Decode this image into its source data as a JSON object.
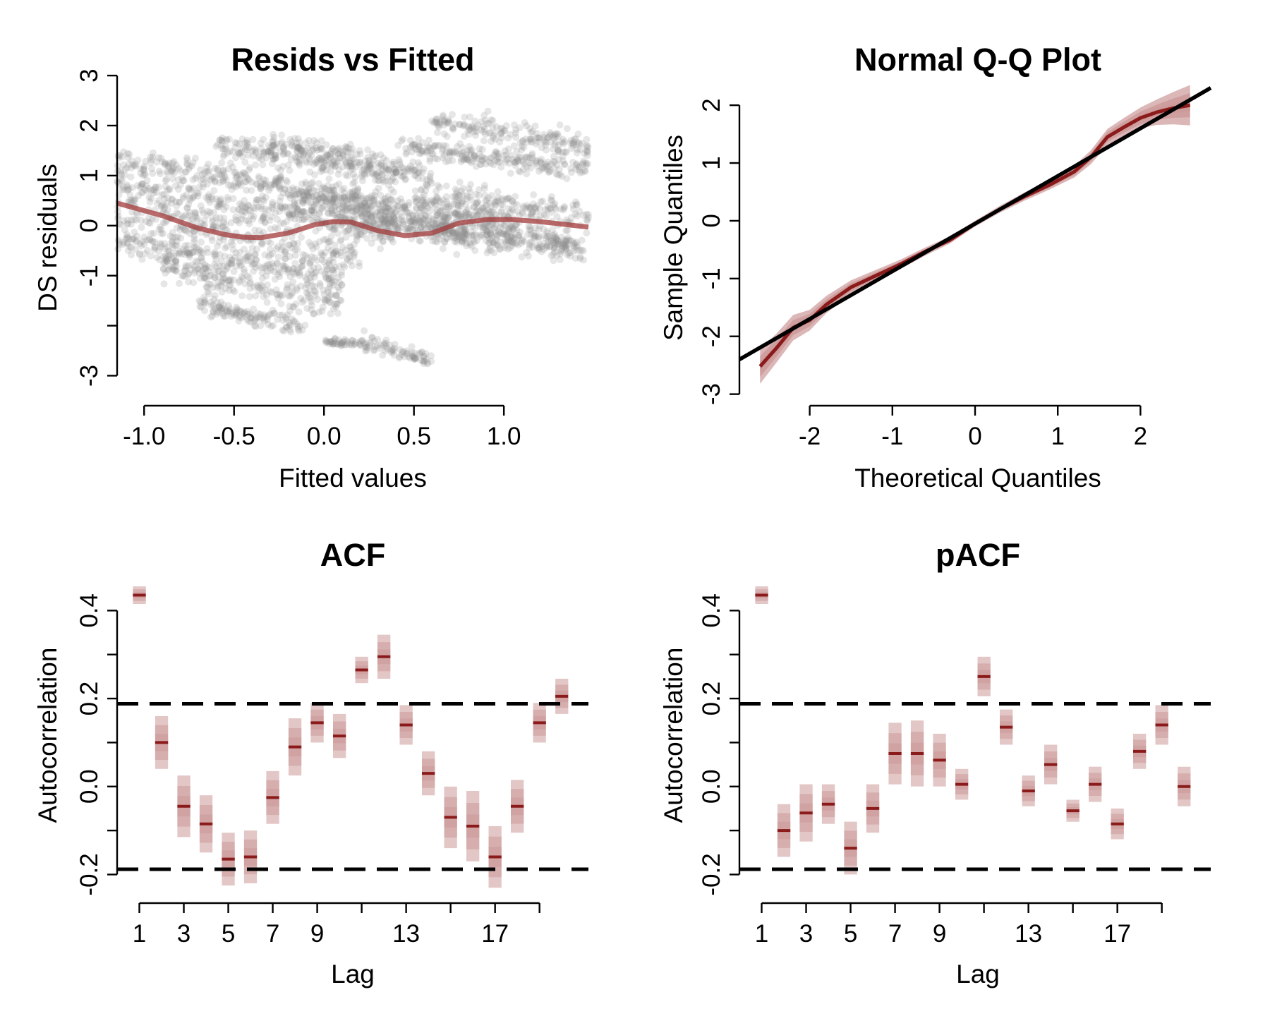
{
  "colors": {
    "band": "#8b1a1a",
    "band_light": "#cc9999",
    "points": "#8c8c8c",
    "smooth": "#a33a3a",
    "refline": "#000000"
  },
  "chart_data": [
    {
      "id": "resid",
      "type": "scatter",
      "title": "Resids vs Fitted",
      "xlabel": "Fitted values",
      "ylabel": "DS residuals",
      "xlim": [
        -1.15,
        1.47
      ],
      "ylim": [
        -3.6,
        3.1
      ],
      "xticks": [
        -1.0,
        -0.5,
        0.0,
        0.5,
        1.0
      ],
      "xtick_labels": [
        "-1.0",
        "-0.5",
        "0.0",
        "0.5",
        "1.0"
      ],
      "yticks": [
        -3,
        -2,
        -1,
        0,
        1,
        2,
        3
      ],
      "ytick_labels": [
        "-3",
        "",
        "-1",
        "0",
        "1",
        "2",
        "3"
      ],
      "point_bands": [
        {
          "x0": -1.15,
          "x1": 0.2,
          "y0": 1.3,
          "slope": -0.55,
          "spread": 0.25
        },
        {
          "x0": -1.15,
          "x1": 0.4,
          "y0": 0.8,
          "slope": -0.6,
          "spread": 0.3
        },
        {
          "x0": -1.15,
          "x1": 0.2,
          "y0": 0.3,
          "slope": -0.65,
          "spread": 0.35
        },
        {
          "x0": -1.15,
          "x1": 0.1,
          "y0": -0.3,
          "slope": -0.6,
          "spread": 0.3
        },
        {
          "x0": -0.9,
          "x1": 0.1,
          "y0": -0.8,
          "slope": -0.75,
          "spread": 0.3
        },
        {
          "x0": -0.7,
          "x1": -0.1,
          "y0": -1.6,
          "slope": -0.7,
          "spread": 0.2
        },
        {
          "x0": -0.6,
          "x1": 0.4,
          "y0": 1.6,
          "slope": -0.6,
          "spread": 0.25
        },
        {
          "x0": -0.3,
          "x1": 0.6,
          "y0": 1.7,
          "slope": -0.8,
          "spread": 0.25
        },
        {
          "x0": -0.2,
          "x1": 0.7,
          "y0": 0.5,
          "slope": -0.7,
          "spread": 0.3
        },
        {
          "x0": 0.0,
          "x1": 1.1,
          "y0": 0.6,
          "slope": -0.55,
          "spread": 0.3
        },
        {
          "x0": 0.2,
          "x1": 1.4,
          "y0": 0.2,
          "slope": -0.45,
          "spread": 0.35
        },
        {
          "x0": 0.6,
          "x1": 1.47,
          "y0": 2.1,
          "slope": -0.6,
          "spread": 0.25
        },
        {
          "x0": 0.4,
          "x1": 1.47,
          "y0": 1.6,
          "slope": -0.45,
          "spread": 0.2
        },
        {
          "x0": 0.5,
          "x1": 1.47,
          "y0": 0.6,
          "slope": -0.4,
          "spread": 0.3
        },
        {
          "x0": 0.6,
          "x1": 1.47,
          "y0": -0.1,
          "slope": -0.45,
          "spread": 0.3
        },
        {
          "x0": 0.2,
          "x1": 0.6,
          "y0": -2.3,
          "slope": -1.0,
          "spread": 0.15
        },
        {
          "x0": 0.0,
          "x1": 0.2,
          "y0": -2.3,
          "slope": -0.3,
          "spread": 0.07
        }
      ],
      "smooth": {
        "x": [
          -1.15,
          -0.9,
          -0.7,
          -0.55,
          -0.45,
          -0.35,
          -0.2,
          -0.05,
          0.05,
          0.15,
          0.3,
          0.45,
          0.6,
          0.75,
          0.9,
          1.05,
          1.2,
          1.35,
          1.47
        ],
        "y": [
          0.45,
          0.2,
          -0.05,
          -0.18,
          -0.23,
          -0.24,
          -0.15,
          0.02,
          0.08,
          0.07,
          -0.1,
          -0.2,
          -0.15,
          0.05,
          0.12,
          0.12,
          0.08,
          0.02,
          -0.03
        ]
      }
    },
    {
      "id": "qq",
      "type": "line",
      "title": "Normal Q-Q Plot",
      "xlabel": "Theoretical Quantiles",
      "ylabel": "Sample Quantiles",
      "xlim": [
        -2.85,
        2.85
      ],
      "ylim": [
        -3.2,
        2.6
      ],
      "xticks": [
        -2,
        -1,
        0,
        1,
        2
      ],
      "xtick_labels": [
        "-2",
        "-1",
        "0",
        "1",
        "2"
      ],
      "yticks": [
        -3,
        -2,
        -1,
        0,
        1,
        2
      ],
      "ytick_labels": [
        "-3",
        "-2",
        "-1",
        "0",
        "1",
        "2"
      ],
      "refline": {
        "x": [
          -2.85,
          2.85
        ],
        "y": [
          -2.4,
          2.3
        ]
      },
      "series": {
        "x": [
          -2.6,
          -2.4,
          -2.2,
          -2.0,
          -1.8,
          -1.5,
          -1.2,
          -0.9,
          -0.6,
          -0.3,
          0.0,
          0.3,
          0.6,
          0.9,
          1.2,
          1.4,
          1.6,
          1.8,
          2.0,
          2.2,
          2.4,
          2.6
        ],
        "y": [
          -2.52,
          -2.2,
          -1.85,
          -1.72,
          -1.45,
          -1.15,
          -0.95,
          -0.75,
          -0.53,
          -0.33,
          -0.05,
          0.2,
          0.42,
          0.62,
          0.85,
          1.1,
          1.45,
          1.62,
          1.78,
          1.88,
          1.95,
          2.0
        ],
        "halfwidth": [
          0.3,
          0.25,
          0.22,
          0.18,
          0.15,
          0.12,
          0.1,
          0.08,
          0.07,
          0.06,
          0.05,
          0.06,
          0.07,
          0.08,
          0.1,
          0.12,
          0.14,
          0.16,
          0.18,
          0.22,
          0.28,
          0.35
        ]
      }
    },
    {
      "id": "acf",
      "type": "bar",
      "title": "ACF",
      "xlabel": "Lag",
      "ylabel": "Autocorrelation",
      "xlim": [
        0.0,
        21.2
      ],
      "ylim": [
        -0.265,
        0.5
      ],
      "xticks": [
        1,
        3,
        5,
        7,
        9,
        11,
        13,
        15,
        17,
        19
      ],
      "xtick_labels": [
        "1",
        "3",
        "5",
        "7",
        "9",
        "",
        "13",
        "",
        "17",
        ""
      ],
      "yticks": [
        -0.2,
        -0.1,
        0.0,
        0.1,
        0.2,
        0.3,
        0.4
      ],
      "ytick_labels": [
        "-0.2",
        "",
        "0.0",
        "",
        "0.2",
        "",
        "0.4"
      ],
      "ci": 0.188,
      "lags": [
        1,
        2,
        3,
        4,
        5,
        6,
        7,
        8,
        9,
        10,
        11,
        12,
        13,
        14,
        15,
        16,
        17,
        18,
        19,
        20
      ],
      "values": [
        0.435,
        0.1,
        -0.045,
        -0.085,
        -0.165,
        -0.16,
        -0.025,
        0.09,
        0.145,
        0.115,
        0.265,
        0.295,
        0.14,
        0.03,
        -0.07,
        -0.09,
        -0.16,
        -0.045,
        0.145,
        0.205
      ],
      "halfwidth": [
        0.02,
        0.06,
        0.07,
        0.065,
        0.06,
        0.06,
        0.06,
        0.065,
        0.045,
        0.05,
        0.03,
        0.05,
        0.045,
        0.05,
        0.07,
        0.08,
        0.07,
        0.06,
        0.045,
        0.04
      ]
    },
    {
      "id": "pacf",
      "type": "bar",
      "title": "pACF",
      "xlabel": "Lag",
      "ylabel": "Autocorrelation",
      "xlim": [
        0.0,
        21.2
      ],
      "ylim": [
        -0.265,
        0.5
      ],
      "xticks": [
        1,
        3,
        5,
        7,
        9,
        11,
        13,
        15,
        17,
        19
      ],
      "xtick_labels": [
        "1",
        "3",
        "5",
        "7",
        "9",
        "",
        "13",
        "",
        "17",
        ""
      ],
      "yticks": [
        -0.2,
        -0.1,
        0.0,
        0.1,
        0.2,
        0.3,
        0.4
      ],
      "ytick_labels": [
        "-0.2",
        "",
        "0.0",
        "",
        "0.2",
        "",
        "0.4"
      ],
      "ci": 0.188,
      "lags": [
        1,
        2,
        3,
        4,
        5,
        6,
        7,
        8,
        9,
        10,
        11,
        12,
        13,
        14,
        15,
        16,
        17,
        18,
        19,
        20
      ],
      "values": [
        0.435,
        -0.1,
        -0.06,
        -0.04,
        -0.14,
        -0.05,
        0.075,
        0.075,
        0.06,
        0.005,
        0.25,
        0.135,
        -0.01,
        0.05,
        -0.055,
        0.005,
        -0.085,
        0.08,
        0.14,
        0.0
      ],
      "halfwidth": [
        0.02,
        0.06,
        0.065,
        0.045,
        0.06,
        0.055,
        0.07,
        0.075,
        0.06,
        0.035,
        0.045,
        0.04,
        0.035,
        0.045,
        0.025,
        0.04,
        0.035,
        0.04,
        0.045,
        0.045
      ]
    }
  ]
}
